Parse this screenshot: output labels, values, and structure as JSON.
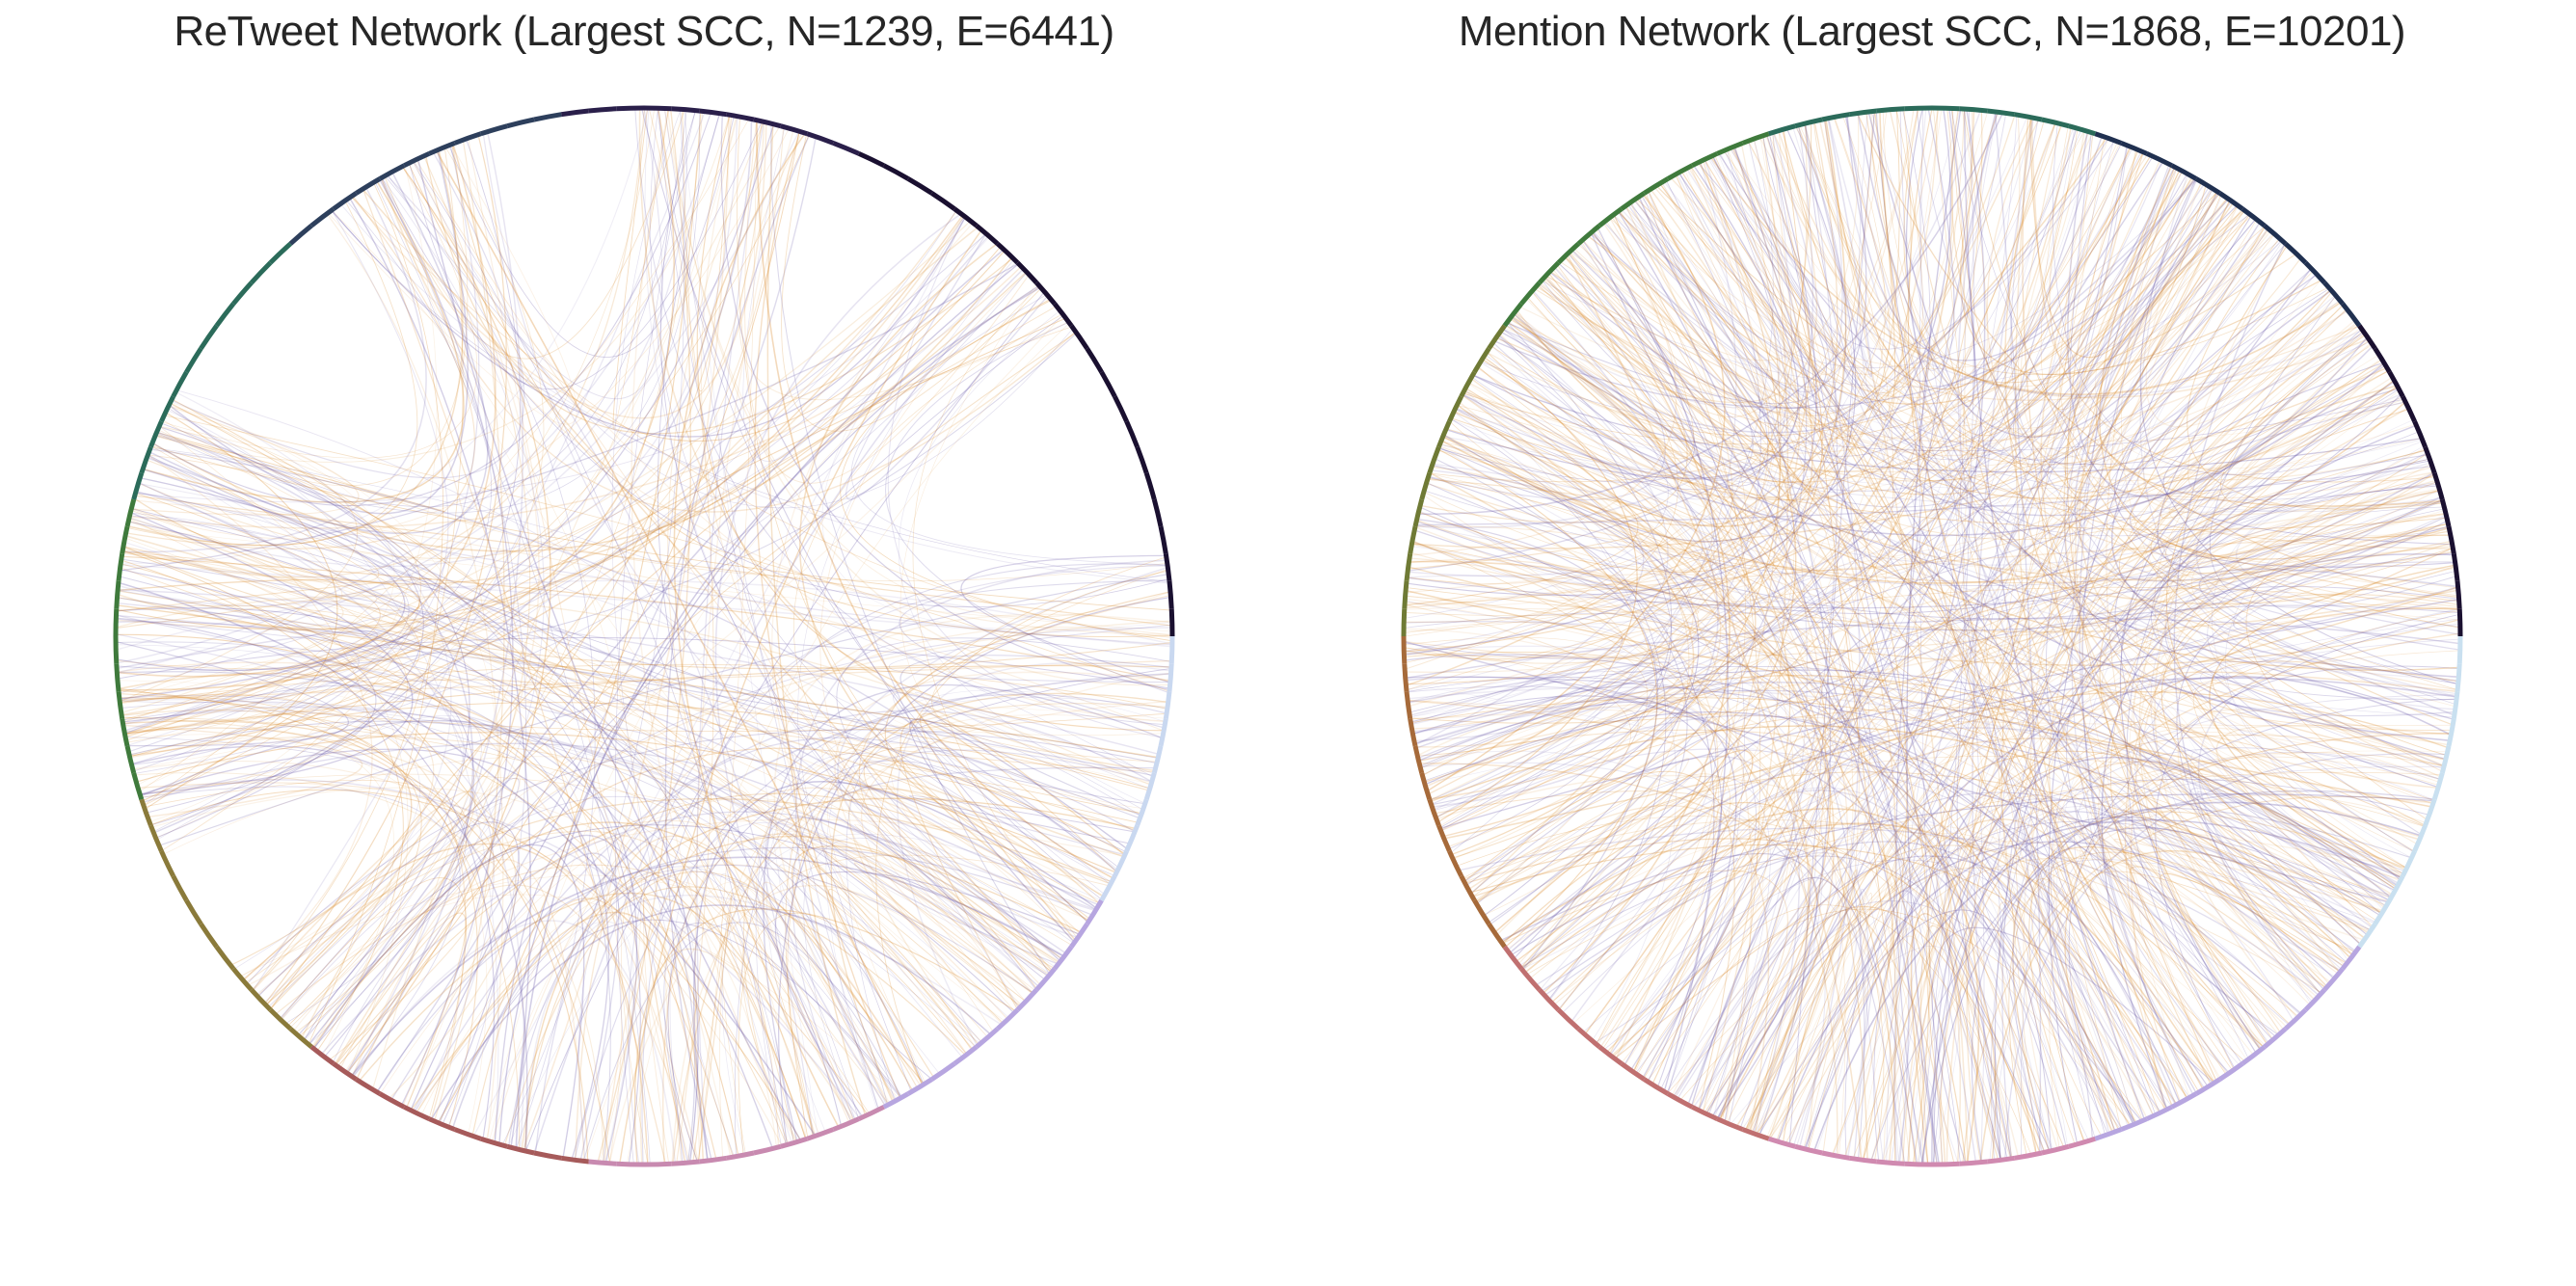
{
  "chart_data": [
    {
      "type": "chord",
      "title": "ReTweet Network (Largest SCC, N=1239, E=6441)",
      "nodes": 1239,
      "edges": 6441,
      "edge_colors": [
        "#d98a2b",
        "#6a5aa8"
      ],
      "rim_colors": [
        "#1a1030",
        "#1a1030",
        "#2a1f4a",
        "#2d3f5c",
        "#2b6b5a",
        "#3f7a3c",
        "#8a7a3a",
        "#a65a5a",
        "#c88ab0",
        "#b7a6e0",
        "#c9d8f0"
      ]
    },
    {
      "type": "chord",
      "title": "Mention Network (Largest SCC, N=1868, E=10201)",
      "nodes": 1868,
      "edges": 10201,
      "edge_colors": [
        "#d98a2b",
        "#6a5aa8"
      ],
      "rim_colors": [
        "#1a1030",
        "#203050",
        "#2b6b5a",
        "#3f7a3c",
        "#6f7a35",
        "#a66a3a",
        "#c07070",
        "#d08ab0",
        "#b7a6e0",
        "#c9e0f0"
      ]
    }
  ]
}
